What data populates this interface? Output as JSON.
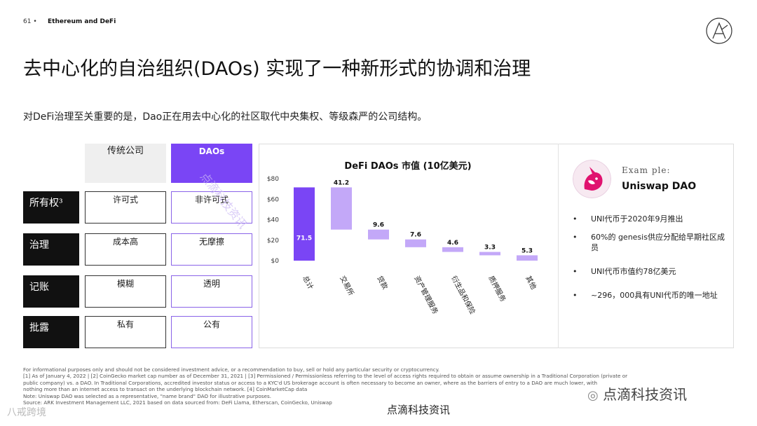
{
  "header": {
    "page_number": "61 •",
    "section": "Ethereum and DeFi"
  },
  "title": "去中心化的自治组织(DAOs) 实现了一种新形式的协调和治理",
  "subtitle": "对DeFi治理至关重要的是，Dao正在用去中心化的社区取代中央集权、等级森严的公司结构。",
  "comparison": {
    "col_traditional": "传统公司",
    "col_dao": "DAOs",
    "rows": [
      {
        "label": "所有权³",
        "traditional": "许可式",
        "dao": "非许可式"
      },
      {
        "label": "治理",
        "traditional": "成本高",
        "dao": "无摩擦"
      },
      {
        "label": "记账",
        "traditional": "模糊",
        "dao": "透明"
      },
      {
        "label": "批露",
        "traditional": "私有",
        "dao": "公有"
      }
    ]
  },
  "chart_data": {
    "type": "bar",
    "title": "DeFi DAOs 市值 (10亿美元)",
    "subtype": "waterfall",
    "categories": [
      "总计",
      "交易所",
      "贷款",
      "资产管理服务",
      "衍生品和保险",
      "质押服务",
      "其他"
    ],
    "values": [
      71.5,
      41.2,
      9.6,
      7.6,
      4.6,
      3.3,
      5.3
    ],
    "value_labels": [
      "71.5",
      "41.2",
      "9.6",
      "7.6",
      "4.6",
      "3.3",
      "5.3"
    ],
    "y_ticks": [
      "$0",
      "$20",
      "$40",
      "$60",
      "$80"
    ],
    "ylim": [
      0,
      80
    ],
    "grid": false,
    "colors": {
      "total": "#7a45f5",
      "step": "#c3a8f8"
    }
  },
  "example": {
    "label": "Exam ple:",
    "name": "Uniswap DAO",
    "icon": "unicorn-icon",
    "bullets": [
      "UNI代币于2020年9月推出",
      "60%的 genesis供应分配给早期社区成员",
      "UNI代币市值约78亿美元",
      "~296，000具有UNI代币的唯一地址"
    ]
  },
  "footnotes": [
    "For informational purposes only and should not be considered investment advice, or a recommendation to buy, sell or hold any particular security or cryptocurrency.",
    "[1] As of January 4, 2022 | [2] CoinGecko market cap number as of December 31, 2021 | [3] Permissioned / Permissionless referring to the level of access rights required to obtain or assume ownership in a Traditional Corporation (private or",
    "public company) vs. a DAO. In Traditional Corporations, accredited investor status or access to a KYC'd US brokerage account is often necessary to become an owner, where as the barriers of entry to a DAO are much lower, with",
    "nothing more than an internet access to transact on the underlying blockchain network. [4] CoinMarketCap data",
    "Note: Uniswap DAO was selected as a representative, \"name brand\" DAO for illustrative purposes.",
    "Source: ARK Investment Management LLC, 2021 based on data sourced from: DeFi Llama, Etherscan, CoinGecko, Uniswap"
  ],
  "watermarks": {
    "bottom": "点滴科技资讯",
    "wechat": "点滴科技资讯",
    "left": "八戒跨境",
    "diagonal": "点滴科技资讯"
  }
}
